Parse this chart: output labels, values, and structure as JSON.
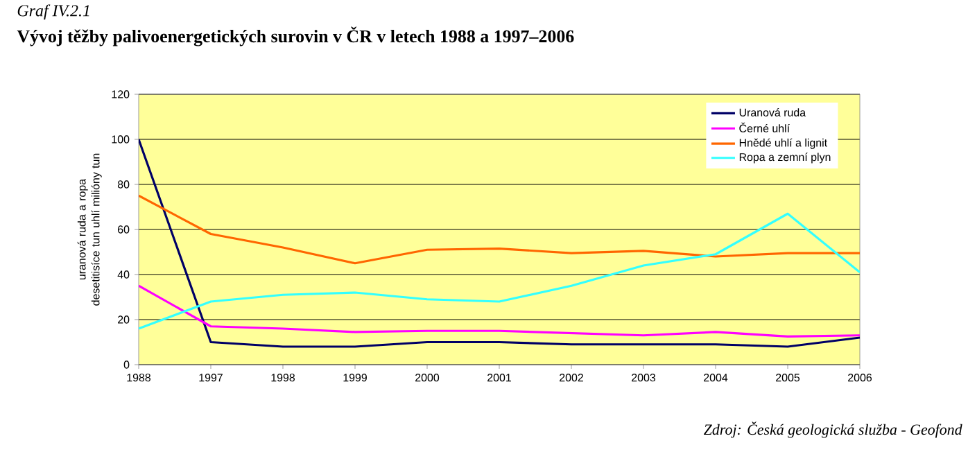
{
  "chart_data": {
    "type": "line",
    "title": "Vývoj těžby palivoenergetických surovin v ČR v letech 1988 a 1997–2006",
    "ylabel": "uranová ruda a ropa desetitisíce tun uhlí milióny tun",
    "annotations": [
      "Graf IV.2.1",
      "Zdroj: Česká geologická služba - Geofond"
    ],
    "categories": [
      "1988",
      "1997",
      "1998",
      "1999",
      "2000",
      "2001",
      "2002",
      "2003",
      "2004",
      "2005",
      "2006"
    ],
    "series": [
      {
        "name": "Uranová ruda",
        "color": "#000066",
        "values": [
          100,
          10,
          8,
          8,
          10,
          10,
          9,
          9,
          9,
          8,
          12
        ]
      },
      {
        "name": "Černé uhlí",
        "color": "#ff00ff",
        "values": [
          35,
          17,
          16,
          14.5,
          15,
          15,
          14,
          13,
          14.5,
          12.5,
          13
        ]
      },
      {
        "name": "Hnědé uhlí a lignit",
        "color": "#ff6600",
        "values": [
          75,
          58,
          52,
          45,
          51,
          51.5,
          49.5,
          50.5,
          48,
          49.5,
          49.5
        ]
      },
      {
        "name": "Ropa a zemní plyn",
        "color": "#33ffff",
        "values": [
          16,
          28,
          31,
          32,
          29,
          28,
          35,
          44,
          49,
          67,
          41
        ]
      }
    ],
    "ylim": [
      0,
      120
    ],
    "yticks": [
      0,
      20,
      40,
      60,
      80,
      100,
      120
    ],
    "grid": "y",
    "legend": "top right",
    "marker": "none",
    "line_style": "solid"
  }
}
